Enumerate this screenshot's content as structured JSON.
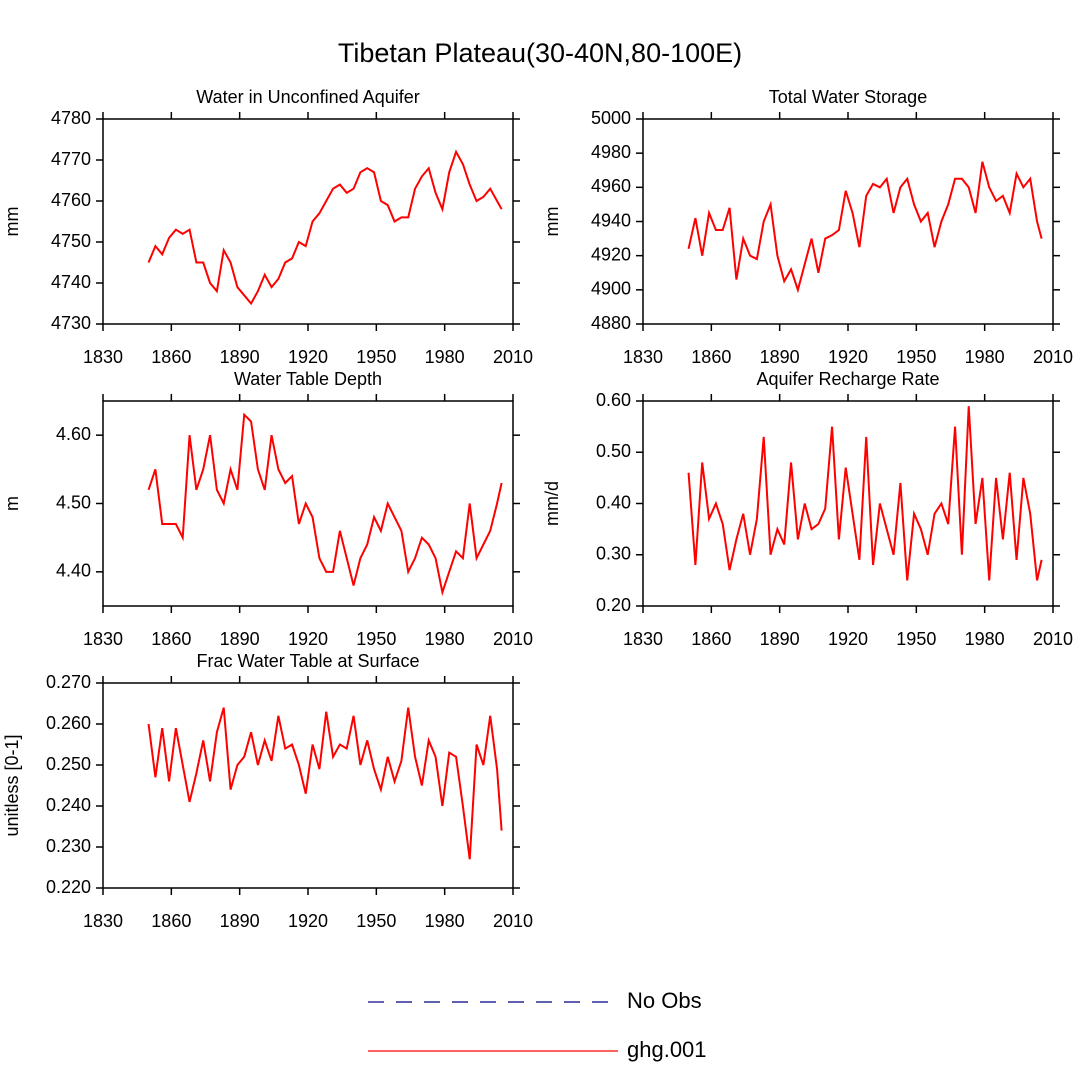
{
  "title": "Tibetan Plateau(30-40N,80-100E)",
  "legend": [
    {
      "name": "No Obs",
      "color": "#000080",
      "dash": true
    },
    {
      "name": "ghg.001",
      "color": "#ff0000",
      "dash": false
    }
  ],
  "chart_data": [
    {
      "type": "line",
      "title": "Water in Unconfined Aquifer",
      "y_label": "mm",
      "color": "#ff0000",
      "x": [
        1850,
        1853,
        1856,
        1859,
        1862,
        1865,
        1868,
        1871,
        1874,
        1877,
        1880,
        1883,
        1886,
        1889,
        1892,
        1895,
        1898,
        1901,
        1904,
        1907,
        1910,
        1913,
        1916,
        1919,
        1922,
        1925,
        1928,
        1931,
        1934,
        1937,
        1940,
        1943,
        1946,
        1949,
        1952,
        1955,
        1958,
        1961,
        1964,
        1967,
        1970,
        1973,
        1976,
        1979,
        1982,
        1985,
        1988,
        1991,
        1994,
        1997,
        2000,
        2003,
        2005
      ],
      "values": [
        4745,
        4749,
        4747,
        4751,
        4753,
        4752,
        4753,
        4745,
        4745,
        4740,
        4738,
        4748,
        4745,
        4739,
        4737,
        4735,
        4738,
        4742,
        4739,
        4741,
        4745,
        4746,
        4750,
        4749,
        4755,
        4757,
        4760,
        4763,
        4764,
        4762,
        4763,
        4767,
        4768,
        4767,
        4760,
        4759,
        4755,
        4756,
        4756,
        4763,
        4766,
        4768,
        4762,
        4758,
        4767,
        4772,
        4769,
        4764,
        4760,
        4761,
        4763,
        4760,
        4758
      ],
      "xlim": [
        1830,
        2010
      ],
      "xticks": [
        1830,
        1860,
        1890,
        1920,
        1950,
        1980,
        2010
      ],
      "ylim": [
        4730,
        4780
      ],
      "yticks": [
        4730,
        4740,
        4750,
        4760,
        4770,
        4780
      ]
    },
    {
      "type": "line",
      "title": "Total Water Storage",
      "y_label": "mm",
      "color": "#ff0000",
      "x": [
        1850,
        1853,
        1856,
        1859,
        1862,
        1865,
        1868,
        1871,
        1874,
        1877,
        1880,
        1883,
        1886,
        1889,
        1892,
        1895,
        1898,
        1901,
        1904,
        1907,
        1910,
        1913,
        1916,
        1919,
        1922,
        1925,
        1928,
        1931,
        1934,
        1937,
        1940,
        1943,
        1946,
        1949,
        1952,
        1955,
        1958,
        1961,
        1964,
        1967,
        1970,
        1973,
        1976,
        1979,
        1982,
        1985,
        1988,
        1991,
        1994,
        1997,
        2000,
        2003,
        2005
      ],
      "values": [
        4924,
        4942,
        4920,
        4945,
        4935,
        4935,
        4948,
        4906,
        4930,
        4920,
        4918,
        4940,
        4950,
        4920,
        4905,
        4912,
        4900,
        4915,
        4930,
        4910,
        4930,
        4932,
        4935,
        4958,
        4945,
        4925,
        4955,
        4962,
        4960,
        4965,
        4945,
        4960,
        4965,
        4950,
        4940,
        4945,
        4925,
        4940,
        4950,
        4965,
        4965,
        4960,
        4945,
        4975,
        4960,
        4952,
        4955,
        4945,
        4968,
        4960,
        4965,
        4940,
        4930
      ],
      "xlim": [
        1830,
        2010
      ],
      "xticks": [
        1830,
        1860,
        1890,
        1920,
        1950,
        1980,
        2010
      ],
      "ylim": [
        4880,
        5000
      ],
      "yticks": [
        4880,
        4900,
        4920,
        4940,
        4960,
        4980,
        5000
      ]
    },
    {
      "type": "line",
      "title": "Water Table Depth",
      "y_label": "m",
      "color": "#ff0000",
      "x": [
        1850,
        1853,
        1856,
        1859,
        1862,
        1865,
        1868,
        1871,
        1874,
        1877,
        1880,
        1883,
        1886,
        1889,
        1892,
        1895,
        1898,
        1901,
        1904,
        1907,
        1910,
        1913,
        1916,
        1919,
        1922,
        1925,
        1928,
        1931,
        1934,
        1937,
        1940,
        1943,
        1946,
        1949,
        1952,
        1955,
        1958,
        1961,
        1964,
        1967,
        1970,
        1973,
        1976,
        1979,
        1982,
        1985,
        1988,
        1991,
        1994,
        1997,
        2000,
        2003,
        2005
      ],
      "values": [
        4.52,
        4.55,
        4.47,
        4.47,
        4.47,
        4.45,
        4.6,
        4.52,
        4.55,
        4.6,
        4.52,
        4.5,
        4.55,
        4.52,
        4.63,
        4.62,
        4.55,
        4.52,
        4.6,
        4.55,
        4.53,
        4.54,
        4.47,
        4.5,
        4.48,
        4.42,
        4.4,
        4.4,
        4.46,
        4.42,
        4.38,
        4.42,
        4.44,
        4.48,
        4.46,
        4.5,
        4.48,
        4.46,
        4.4,
        4.42,
        4.45,
        4.44,
        4.42,
        4.37,
        4.4,
        4.43,
        4.42,
        4.5,
        4.42,
        4.44,
        4.46,
        4.5,
        4.53
      ],
      "xlim": [
        1830,
        2010
      ],
      "xticks": [
        1830,
        1860,
        1890,
        1920,
        1950,
        1980,
        2010
      ],
      "ylim": [
        4.35,
        4.65
      ],
      "yticks": [
        {
          "value": 4.4,
          "label": "4.40"
        },
        {
          "value": 4.5,
          "label": "4.50"
        },
        {
          "value": 4.6,
          "label": "4.60"
        }
      ]
    },
    {
      "type": "line",
      "title": "Aquifer Recharge Rate",
      "y_label": "mm/d",
      "color": "#ff0000",
      "x": [
        1850,
        1853,
        1856,
        1859,
        1862,
        1865,
        1868,
        1871,
        1874,
        1877,
        1880,
        1883,
        1886,
        1889,
        1892,
        1895,
        1898,
        1901,
        1904,
        1907,
        1910,
        1913,
        1916,
        1919,
        1922,
        1925,
        1928,
        1931,
        1934,
        1937,
        1940,
        1943,
        1946,
        1949,
        1952,
        1955,
        1958,
        1961,
        1964,
        1967,
        1970,
        1973,
        1976,
        1979,
        1982,
        1985,
        1988,
        1991,
        1994,
        1997,
        2000,
        2003,
        2005
      ],
      "values": [
        0.46,
        0.28,
        0.48,
        0.37,
        0.4,
        0.36,
        0.27,
        0.33,
        0.38,
        0.3,
        0.37,
        0.53,
        0.3,
        0.35,
        0.32,
        0.48,
        0.33,
        0.4,
        0.35,
        0.36,
        0.39,
        0.55,
        0.33,
        0.47,
        0.38,
        0.29,
        0.53,
        0.28,
        0.4,
        0.35,
        0.3,
        0.44,
        0.25,
        0.38,
        0.35,
        0.3,
        0.38,
        0.4,
        0.36,
        0.55,
        0.3,
        0.59,
        0.36,
        0.45,
        0.25,
        0.45,
        0.33,
        0.46,
        0.29,
        0.45,
        0.38,
        0.25,
        0.29
      ],
      "xlim": [
        1830,
        2010
      ],
      "xticks": [
        1830,
        1860,
        1890,
        1920,
        1950,
        1980,
        2010
      ],
      "ylim": [
        0.2,
        0.6
      ],
      "yticks": [
        {
          "value": 0.2,
          "label": "0.20"
        },
        {
          "value": 0.3,
          "label": "0.30"
        },
        {
          "value": 0.4,
          "label": "0.40"
        },
        {
          "value": 0.5,
          "label": "0.50"
        },
        {
          "value": 0.6,
          "label": "0.60"
        }
      ]
    },
    {
      "type": "line",
      "title": "Frac Water Table at Surface",
      "y_label": "unitless [0-1]",
      "color": "#ff0000",
      "x": [
        1850,
        1853,
        1856,
        1859,
        1862,
        1865,
        1868,
        1871,
        1874,
        1877,
        1880,
        1883,
        1886,
        1889,
        1892,
        1895,
        1898,
        1901,
        1904,
        1907,
        1910,
        1913,
        1916,
        1919,
        1922,
        1925,
        1928,
        1931,
        1934,
        1937,
        1940,
        1943,
        1946,
        1949,
        1952,
        1955,
        1958,
        1961,
        1964,
        1967,
        1970,
        1973,
        1976,
        1979,
        1982,
        1985,
        1988,
        1991,
        1994,
        1997,
        2000,
        2003,
        2005
      ],
      "values": [
        0.26,
        0.247,
        0.259,
        0.246,
        0.259,
        0.25,
        0.241,
        0.248,
        0.256,
        0.246,
        0.258,
        0.264,
        0.244,
        0.25,
        0.252,
        0.258,
        0.25,
        0.256,
        0.251,
        0.262,
        0.254,
        0.255,
        0.25,
        0.243,
        0.255,
        0.249,
        0.263,
        0.252,
        0.255,
        0.254,
        0.262,
        0.25,
        0.256,
        0.249,
        0.244,
        0.252,
        0.246,
        0.251,
        0.264,
        0.252,
        0.245,
        0.256,
        0.252,
        0.24,
        0.253,
        0.252,
        0.24,
        0.227,
        0.255,
        0.25,
        0.262,
        0.249,
        0.234
      ],
      "xlim": [
        1830,
        2010
      ],
      "xticks": [
        1830,
        1860,
        1890,
        1920,
        1950,
        1980,
        2010
      ],
      "ylim": [
        0.22,
        0.27
      ],
      "yticks": [
        {
          "value": 0.22,
          "label": "0.220"
        },
        {
          "value": 0.23,
          "label": "0.230"
        },
        {
          "value": 0.24,
          "label": "0.240"
        },
        {
          "value": 0.25,
          "label": "0.250"
        },
        {
          "value": 0.26,
          "label": "0.260"
        },
        {
          "value": 0.27,
          "label": "0.270"
        }
      ]
    }
  ]
}
